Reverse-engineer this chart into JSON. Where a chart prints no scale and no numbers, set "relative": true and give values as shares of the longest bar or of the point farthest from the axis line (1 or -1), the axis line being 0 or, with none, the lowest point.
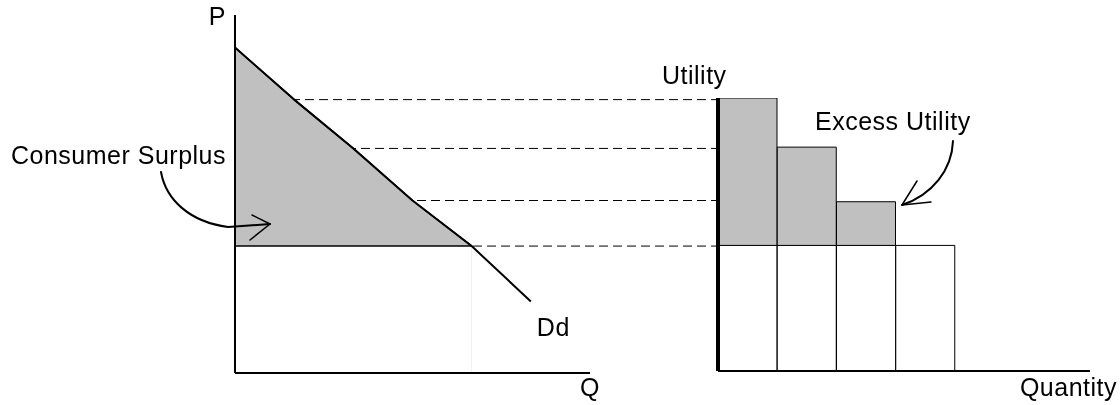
{
  "chart_data": [
    {
      "type": "line",
      "xlabel": "Q",
      "ylabel": "P",
      "relative": true,
      "categories": [
        null,
        null,
        null,
        null,
        null,
        null,
        null
      ],
      "series": [
        {
          "type": "area",
          "name": "Consumer Surplus",
          "color": "#c0c0c0",
          "values": [
            1,
            0.84,
            0.69,
            0.53,
            0.39,
            null,
            null
          ]
        },
        {
          "type": "area",
          "color": "#ffffff",
          "values": [
            0.39,
            0.39,
            0.39,
            0.39,
            0.39,
            null,
            null
          ]
        },
        {
          "name": "Dd",
          "color": "#000000",
          "values": [
            1,
            0.84,
            0.69,
            0.53,
            0.39,
            0.22,
            null
          ]
        }
      ],
      "ref_lines": [
        {
          "axis": "y",
          "value": 0.84,
          "line_style": "dashed"
        },
        {
          "axis": "y",
          "value": 0.69,
          "line_style": "dashed"
        },
        {
          "axis": "y",
          "value": 0.53,
          "line_style": "dashed"
        },
        {
          "axis": "y",
          "value": 0.39,
          "line_style": "dashed"
        }
      ]
    },
    {
      "type": "bar",
      "stacked": true,
      "relative": true,
      "xlabel": "Quantity",
      "ylabel": "Utility",
      "categories": [
        null,
        null,
        null,
        null
      ],
      "series": [
        {
          "color": "#ffffff",
          "values": [
            0.46,
            0.46,
            0.46,
            0.46
          ]
        },
        {
          "name": "Excess Utility",
          "color": "#c0c0c0",
          "values": [
            0.54,
            0.36,
            0.16,
            0
          ]
        }
      ]
    }
  ]
}
